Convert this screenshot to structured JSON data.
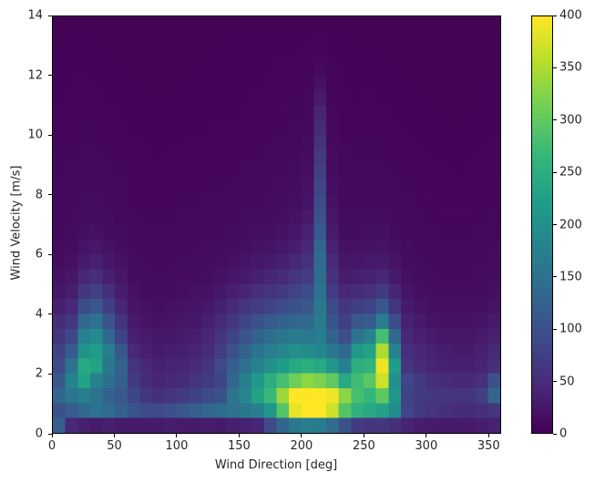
{
  "chart_data": {
    "type": "heatmap",
    "xlabel": "Wind Direction [deg]",
    "ylabel": "Wind Velocity [m/s]",
    "x_range": [
      0,
      360
    ],
    "y_range": [
      0,
      14
    ],
    "x_bin_width": 10,
    "y_bin_width": 0.5,
    "n_x_bins": 36,
    "n_y_bins": 28,
    "x_ticks": [
      0,
      50,
      100,
      150,
      200,
      250,
      300,
      350
    ],
    "y_ticks": [
      0,
      2,
      4,
      6,
      8,
      10,
      12,
      14
    ],
    "grid": false,
    "legend_position": "none",
    "colorbar": {
      "min": 0,
      "max": 400,
      "ticks": [
        0,
        50,
        100,
        150,
        200,
        250,
        300,
        350,
        400
      ],
      "colormap": "viridis",
      "stops": [
        "#440154",
        "#482878",
        "#3e4989",
        "#31688e",
        "#26828e",
        "#1f9e89",
        "#35b779",
        "#6ece58",
        "#b5de2b",
        "#fde725"
      ]
    },
    "values_layout": "rows bottom-to-top: row 0 = velocity 0-0.5 m/s; 36 columns = direction 0-360 deg",
    "values": [
      [
        120,
        45,
        35,
        30,
        35,
        30,
        28,
        30,
        28,
        32,
        28,
        30,
        32,
        30,
        35,
        38,
        42,
        90,
        130,
        160,
        170,
        165,
        140,
        100,
        70,
        60,
        65,
        55,
        40,
        32,
        30,
        28,
        30,
        28,
        32,
        38
      ],
      [
        100,
        115,
        135,
        150,
        140,
        120,
        105,
        95,
        90,
        100,
        110,
        120,
        130,
        140,
        150,
        160,
        175,
        210,
        290,
        385,
        400,
        400,
        370,
        290,
        255,
        240,
        230,
        195,
        85,
        70,
        60,
        55,
        50,
        50,
        55,
        60
      ],
      [
        130,
        155,
        170,
        150,
        125,
        110,
        85,
        65,
        55,
        60,
        70,
        80,
        90,
        100,
        150,
        185,
        230,
        270,
        340,
        400,
        400,
        400,
        390,
        330,
        280,
        265,
        300,
        210,
        80,
        70,
        65,
        60,
        60,
        60,
        75,
        130
      ],
      [
        110,
        180,
        230,
        175,
        145,
        120,
        70,
        50,
        42,
        45,
        50,
        60,
        70,
        85,
        130,
        175,
        215,
        250,
        280,
        310,
        330,
        320,
        300,
        240,
        275,
        295,
        370,
        200,
        85,
        70,
        55,
        50,
        45,
        45,
        55,
        100
      ],
      [
        90,
        150,
        240,
        230,
        160,
        125,
        60,
        45,
        38,
        40,
        42,
        50,
        60,
        90,
        120,
        150,
        180,
        200,
        220,
        240,
        250,
        240,
        210,
        175,
        250,
        260,
        390,
        220,
        60,
        50,
        42,
        38,
        35,
        35,
        40,
        55
      ],
      [
        80,
        115,
        205,
        220,
        170,
        110,
        45,
        35,
        30,
        32,
        35,
        40,
        50,
        75,
        100,
        125,
        150,
        170,
        185,
        200,
        195,
        185,
        160,
        135,
        215,
        230,
        350,
        180,
        55,
        45,
        38,
        32,
        30,
        30,
        35,
        45
      ],
      [
        60,
        85,
        175,
        190,
        135,
        80,
        35,
        28,
        25,
        26,
        28,
        32,
        42,
        60,
        80,
        105,
        125,
        140,
        155,
        165,
        160,
        170,
        125,
        95,
        150,
        180,
        280,
        135,
        45,
        35,
        28,
        25,
        24,
        24,
        28,
        35
      ],
      [
        50,
        65,
        135,
        150,
        105,
        60,
        28,
        22,
        20,
        22,
        24,
        26,
        34,
        48,
        65,
        85,
        100,
        115,
        125,
        130,
        135,
        165,
        105,
        75,
        110,
        115,
        170,
        95,
        38,
        28,
        22,
        20,
        19,
        19,
        22,
        28
      ],
      [
        35,
        45,
        95,
        110,
        75,
        42,
        22,
        18,
        16,
        18,
        20,
        22,
        26,
        36,
        48,
        60,
        72,
        82,
        90,
        100,
        110,
        160,
        92,
        62,
        75,
        80,
        110,
        62,
        30,
        22,
        17,
        15,
        15,
        15,
        17,
        22
      ],
      [
        25,
        32,
        65,
        78,
        52,
        32,
        18,
        14,
        13,
        14,
        16,
        18,
        20,
        26,
        34,
        42,
        52,
        60,
        70,
        82,
        92,
        150,
        72,
        45,
        50,
        55,
        70,
        42,
        22,
        17,
        14,
        12,
        12,
        12,
        14,
        17
      ],
      [
        18,
        24,
        44,
        52,
        36,
        24,
        14,
        12,
        11,
        12,
        13,
        14,
        16,
        20,
        25,
        30,
        36,
        42,
        50,
        62,
        72,
        145,
        58,
        32,
        35,
        38,
        45,
        30,
        17,
        14,
        12,
        10,
        10,
        10,
        12,
        14
      ],
      [
        14,
        18,
        30,
        36,
        26,
        18,
        12,
        10,
        9,
        10,
        11,
        12,
        13,
        15,
        18,
        22,
        26,
        30,
        36,
        45,
        58,
        140,
        48,
        24,
        25,
        27,
        30,
        21,
        13,
        11,
        9,
        9,
        9,
        9,
        10,
        12
      ],
      [
        12,
        14,
        22,
        25,
        19,
        14,
        10,
        9,
        8,
        9,
        9,
        10,
        11,
        12,
        14,
        16,
        19,
        22,
        26,
        33,
        46,
        130,
        38,
        18,
        18,
        19,
        21,
        16,
        11,
        9,
        8,
        8,
        8,
        8,
        9,
        10
      ],
      [
        10,
        12,
        16,
        18,
        14,
        11,
        9,
        8,
        8,
        8,
        8,
        9,
        9,
        10,
        11,
        13,
        15,
        17,
        20,
        25,
        36,
        112,
        30,
        14,
        14,
        15,
        16,
        12,
        10,
        8,
        8,
        7,
        7,
        7,
        8,
        9
      ],
      [
        9,
        10,
        13,
        14,
        11,
        9,
        8,
        7,
        7,
        7,
        8,
        8,
        8,
        9,
        10,
        11,
        12,
        13,
        15,
        19,
        28,
        100,
        24,
        12,
        11,
        12,
        12,
        10,
        9,
        8,
        7,
        7,
        7,
        7,
        7,
        8
      ],
      [
        8,
        9,
        11,
        11,
        10,
        8,
        7,
        7,
        7,
        7,
        7,
        7,
        8,
        8,
        9,
        9,
        10,
        11,
        13,
        16,
        22,
        92,
        19,
        10,
        10,
        10,
        10,
        9,
        8,
        7,
        7,
        6,
        6,
        6,
        7,
        7
      ],
      [
        8,
        8,
        9,
        10,
        9,
        8,
        7,
        6,
        6,
        6,
        7,
        7,
        7,
        7,
        8,
        8,
        9,
        10,
        11,
        13,
        18,
        85,
        16,
        9,
        9,
        9,
        9,
        8,
        7,
        7,
        6,
        6,
        6,
        6,
        6,
        7
      ],
      [
        7,
        8,
        9,
        9,
        8,
        7,
        6,
        6,
        6,
        6,
        6,
        6,
        7,
        7,
        7,
        8,
        8,
        9,
        10,
        12,
        15,
        78,
        14,
        8,
        8,
        8,
        8,
        7,
        7,
        6,
        6,
        6,
        5,
        6,
        6,
        6
      ],
      [
        7,
        7,
        8,
        8,
        7,
        7,
        6,
        6,
        5,
        6,
        6,
        6,
        6,
        6,
        7,
        7,
        7,
        8,
        9,
        10,
        13,
        68,
        12,
        8,
        7,
        7,
        7,
        7,
        6,
        6,
        5,
        5,
        5,
        5,
        6,
        6
      ],
      [
        6,
        7,
        7,
        7,
        7,
        6,
        6,
        5,
        5,
        5,
        5,
        6,
        6,
        6,
        6,
        6,
        7,
        7,
        8,
        9,
        11,
        58,
        10,
        7,
        7,
        7,
        7,
        6,
        6,
        5,
        5,
        5,
        5,
        5,
        5,
        6
      ],
      [
        6,
        6,
        7,
        7,
        6,
        6,
        5,
        5,
        5,
        5,
        5,
        5,
        5,
        6,
        6,
        6,
        6,
        7,
        7,
        8,
        10,
        48,
        9,
        6,
        6,
        6,
        6,
        6,
        5,
        5,
        5,
        4,
        4,
        5,
        5,
        5
      ],
      [
        6,
        6,
        6,
        6,
        6,
        5,
        5,
        5,
        4,
        5,
        5,
        5,
        5,
        5,
        5,
        6,
        6,
        6,
        7,
        7,
        9,
        40,
        8,
        6,
        6,
        6,
        6,
        5,
        5,
        5,
        4,
        4,
        4,
        4,
        5,
        5
      ],
      [
        5,
        6,
        6,
        6,
        5,
        5,
        5,
        4,
        4,
        4,
        5,
        5,
        5,
        5,
        5,
        5,
        6,
        6,
        6,
        7,
        8,
        30,
        7,
        6,
        5,
        6,
        5,
        5,
        5,
        4,
        4,
        4,
        4,
        4,
        4,
        5
      ],
      [
        5,
        5,
        6,
        5,
        5,
        5,
        4,
        4,
        4,
        4,
        4,
        5,
        5,
        5,
        5,
        5,
        5,
        6,
        6,
        6,
        7,
        20,
        6,
        5,
        5,
        5,
        5,
        5,
        4,
        4,
        4,
        4,
        4,
        4,
        4,
        5
      ],
      [
        5,
        5,
        5,
        5,
        5,
        4,
        4,
        4,
        4,
        4,
        4,
        4,
        5,
        5,
        5,
        5,
        5,
        5,
        6,
        6,
        6,
        10,
        6,
        5,
        5,
        5,
        5,
        4,
        4,
        4,
        4,
        4,
        4,
        4,
        4,
        4
      ],
      [
        5,
        5,
        5,
        5,
        4,
        4,
        4,
        4,
        4,
        4,
        4,
        4,
        4,
        4,
        5,
        5,
        5,
        5,
        5,
        5,
        6,
        7,
        5,
        5,
        5,
        5,
        4,
        4,
        4,
        4,
        4,
        4,
        4,
        4,
        4,
        4
      ],
      [
        4,
        5,
        5,
        5,
        4,
        4,
        4,
        4,
        4,
        4,
        4,
        4,
        4,
        4,
        4,
        5,
        5,
        5,
        5,
        5,
        5,
        6,
        5,
        5,
        4,
        4,
        4,
        4,
        4,
        4,
        4,
        4,
        4,
        4,
        4,
        4
      ],
      [
        4,
        4,
        5,
        4,
        4,
        4,
        4,
        4,
        4,
        4,
        4,
        4,
        4,
        4,
        4,
        4,
        5,
        5,
        5,
        5,
        5,
        5,
        5,
        4,
        4,
        4,
        4,
        4,
        4,
        4,
        4,
        4,
        4,
        4,
        4,
        4
      ]
    ]
  }
}
